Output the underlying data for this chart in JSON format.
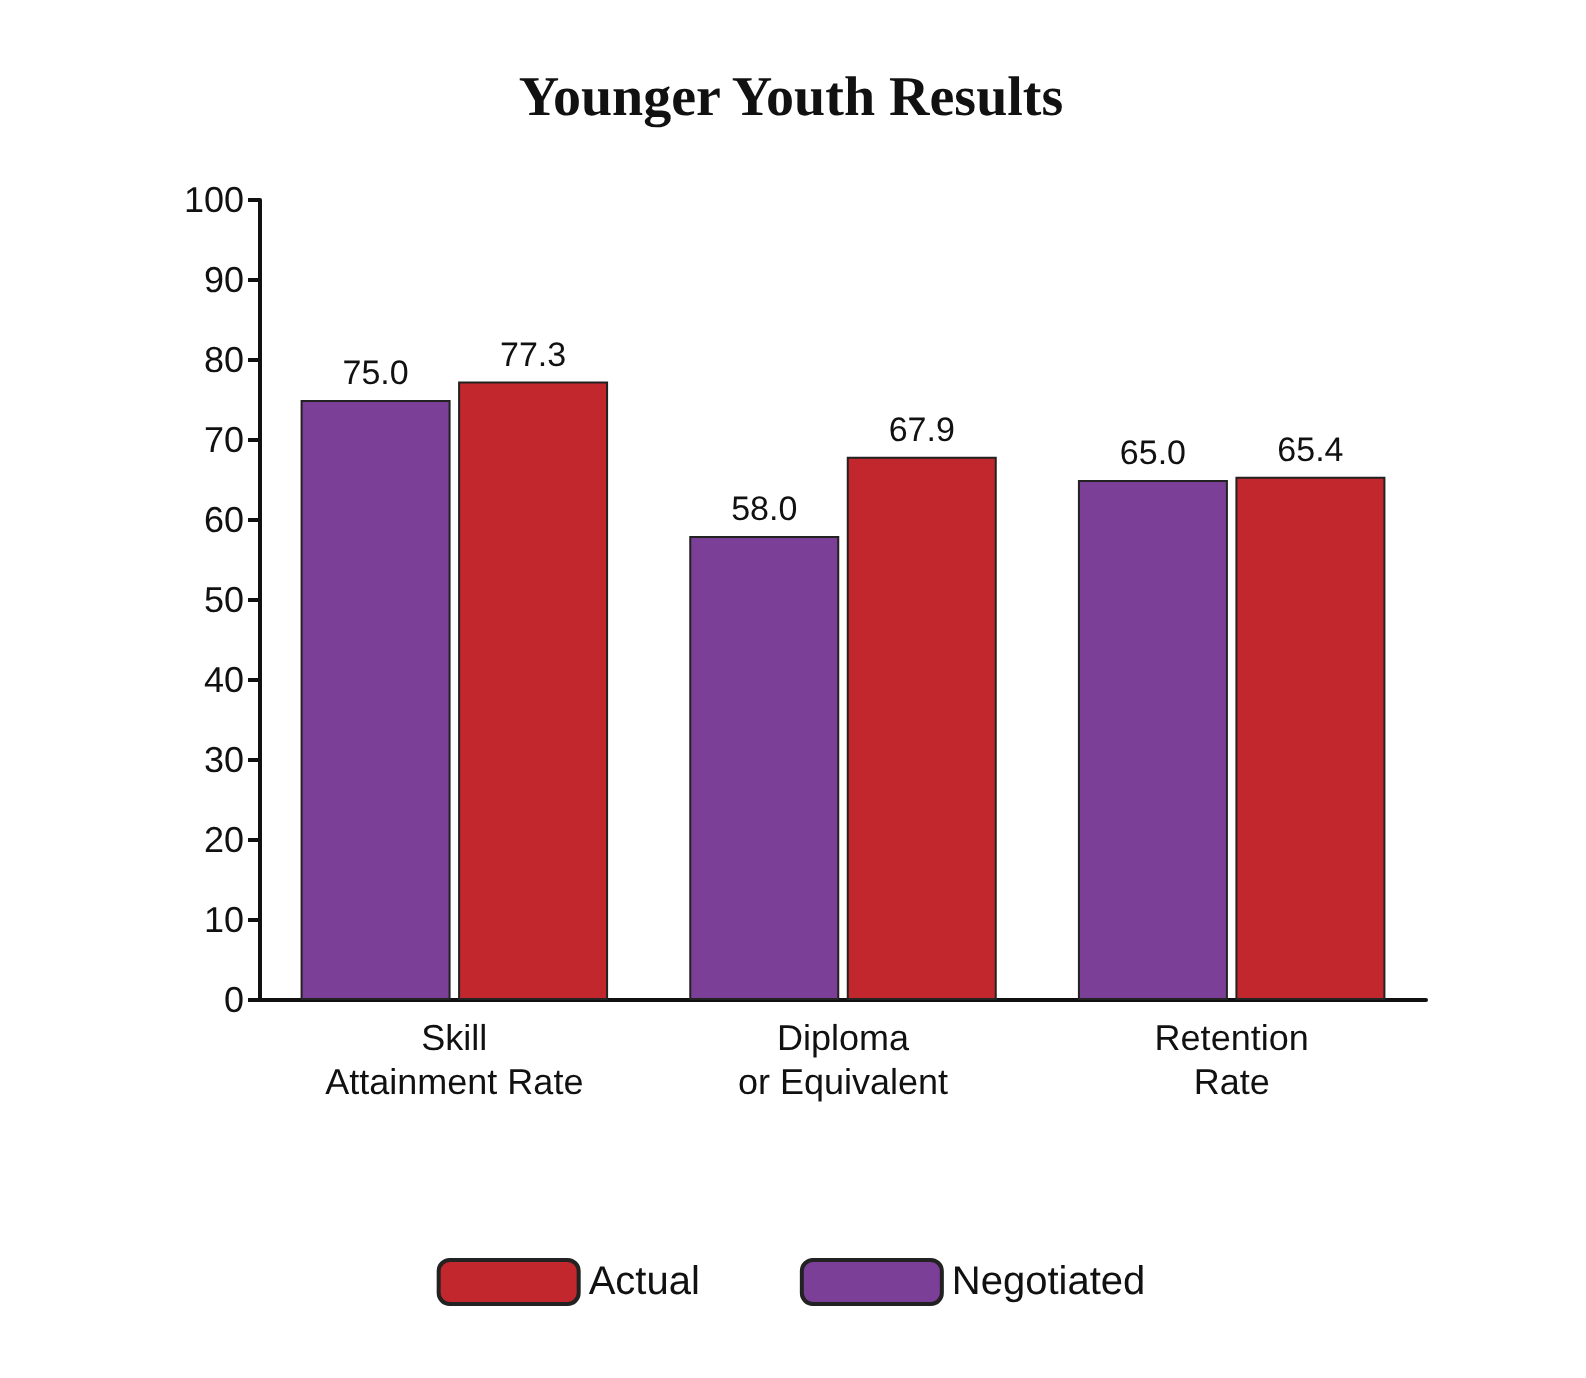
{
  "chart_data": {
    "type": "bar",
    "title": "Younger Youth Results",
    "categories": [
      "Skill\nAttainment Rate",
      "Diploma\nor Equivalent",
      "Retention\nRate"
    ],
    "series": [
      {
        "name": "Negotiated",
        "color": "#7b3f98",
        "values": [
          75.0,
          58.0,
          65.0
        ],
        "value_labels": [
          "75.0",
          "58.0",
          "65.0"
        ]
      },
      {
        "name": "Actual",
        "color": "#c1272d",
        "values": [
          77.3,
          67.9,
          65.4
        ],
        "value_labels": [
          "77.3",
          "67.9",
          "65.4"
        ]
      }
    ],
    "ylim": [
      0,
      100
    ],
    "yticks": [
      0,
      10,
      20,
      30,
      40,
      50,
      60,
      70,
      80,
      90,
      100
    ],
    "grid": false,
    "legend": "bottom"
  }
}
